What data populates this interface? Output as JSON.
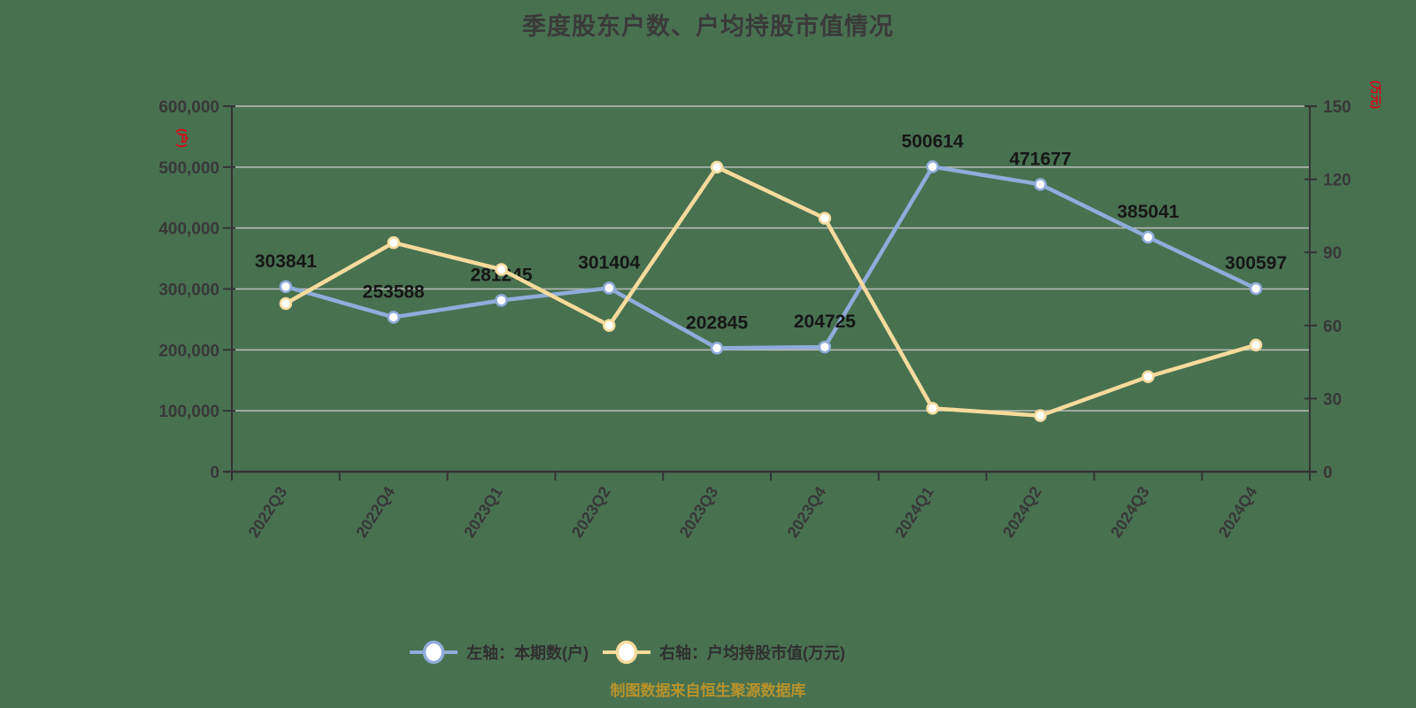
{
  "title": "季度股东户数、户均持股市值情况",
  "source_note": "制图数据来自恒生聚源数据库",
  "colors": {
    "background": "#487150",
    "blue_series": "#8FACDB",
    "yellow_series": "#F7DB9C",
    "grid": "#BBBEBB",
    "axis": "#333333",
    "tick_text": "#383838",
    "data_label": "#161616",
    "title_text": "#3A3A3A",
    "legend_text": "#2F2F2F",
    "unit_label_red": "#E60012",
    "source_text": "#B8932B",
    "marker_fill": "#FFFFFF"
  },
  "left_axis": {
    "unit_label": "(户)",
    "min": 0,
    "max": 600000,
    "step": 100000,
    "tick_labels": [
      "0",
      "100,000",
      "200,000",
      "300,000",
      "400,000",
      "500,000",
      "600,000"
    ]
  },
  "right_axis": {
    "unit_label": "(万元)",
    "min": 0,
    "max": 150,
    "step": 30,
    "tick_labels": [
      "0",
      "30",
      "60",
      "90",
      "120",
      "150"
    ]
  },
  "legend": [
    {
      "label": "左轴：本期数(户)",
      "color": "#8FACDB"
    },
    {
      "label": "右轴：户均持股市值(万元)",
      "color": "#F7DB9C"
    }
  ],
  "chart_data": {
    "type": "line",
    "categories": [
      "2022Q3",
      "2022Q4",
      "2023Q1",
      "2023Q2",
      "2023Q3",
      "2023Q4",
      "2024Q1",
      "2024Q2",
      "2024Q3",
      "2024Q4"
    ],
    "series": [
      {
        "name": "左轴：本期数(户)",
        "axis": "left",
        "color": "#8FACDB",
        "values": [
          303841,
          253588,
          281245,
          301404,
          202845,
          204725,
          500614,
          471677,
          385041,
          300597
        ],
        "point_labels": [
          "303841",
          "253588",
          "281245",
          "301404",
          "202845",
          "204725",
          "500614",
          "471677",
          "385041",
          "300597"
        ]
      },
      {
        "name": "右轴：户均持股市值(万元)",
        "axis": "right",
        "color": "#F7DB9C",
        "values": [
          69,
          94,
          83,
          60,
          125,
          104,
          26,
          23,
          39,
          52
        ]
      }
    ],
    "ylim_left": [
      0,
      600000
    ],
    "ylim_right": [
      0,
      150
    ],
    "grid": true,
    "legend_position": "bottom"
  }
}
